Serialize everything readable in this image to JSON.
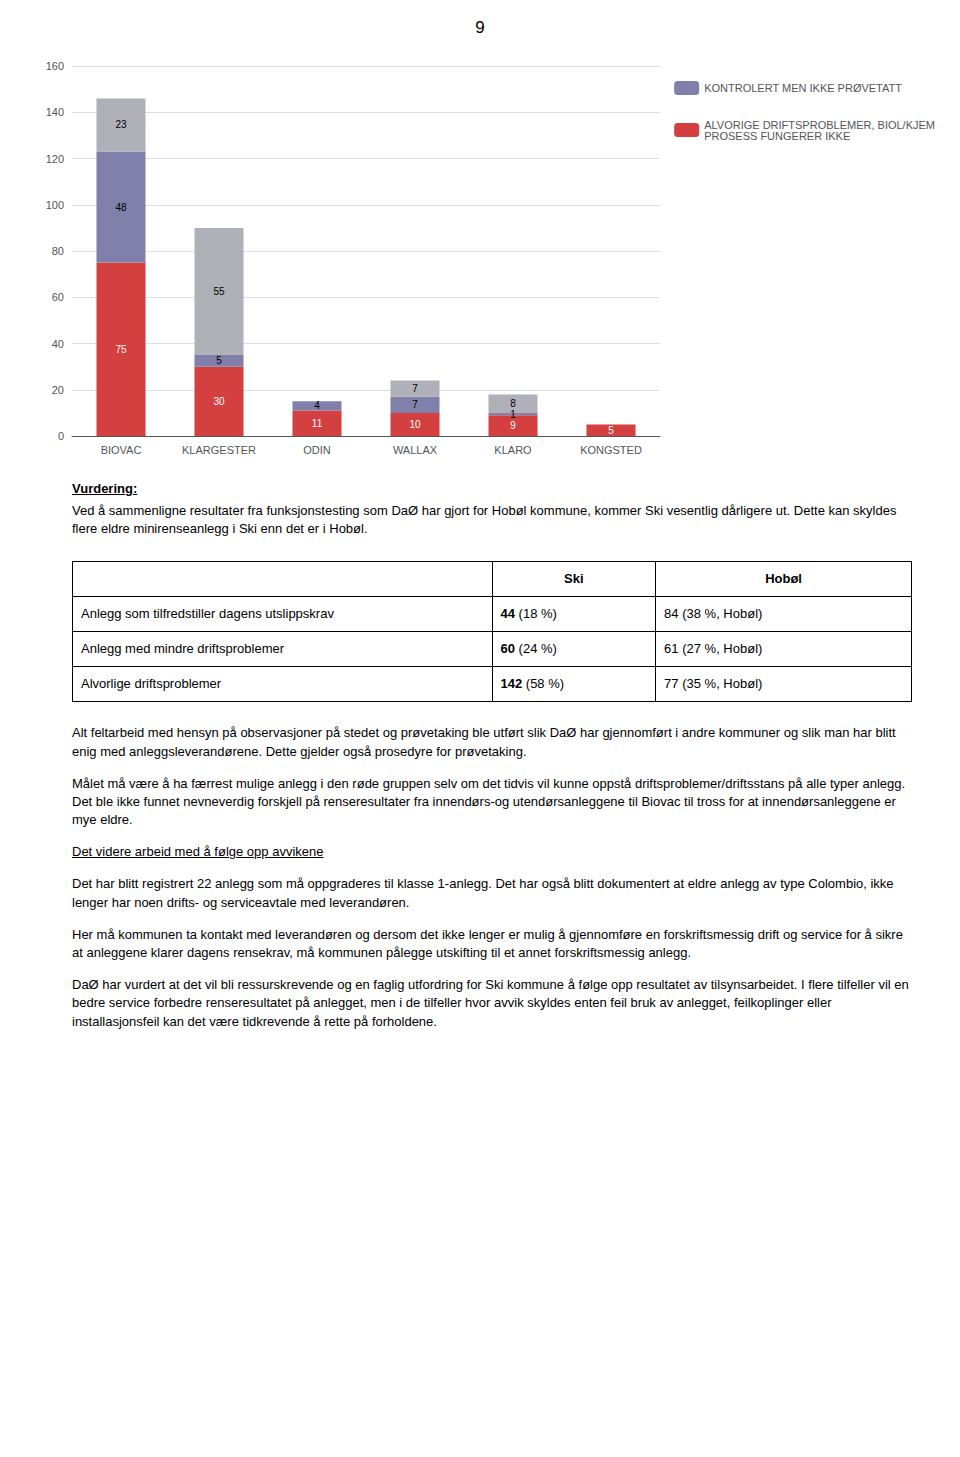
{
  "page_number": "9",
  "chart_data": {
    "type": "bar",
    "stacked": true,
    "categories": [
      "BIOVAC",
      "KLARGESTER",
      "ODIN",
      "WALLAX",
      "KLARO",
      "KONGSTED"
    ],
    "series": [
      {
        "name": "ALVORIGE DRIFTSPROBLEMER, BIOL/KJEM\nPROSESS FUNGERER IKKE",
        "color": "#d43f3f",
        "values": [
          75,
          30,
          11,
          10,
          9,
          5
        ]
      },
      {
        "name": "KONTROLERT MEN IKKE PRØVETATT",
        "color": "#8080aa",
        "values": [
          48,
          5,
          4,
          7,
          1,
          0
        ]
      },
      {
        "color": "#b0b0b8",
        "values": [
          23,
          55,
          0,
          7,
          8,
          0
        ]
      }
    ],
    "ylim": [
      0,
      160
    ],
    "yticks": [
      0,
      20,
      40,
      60,
      80,
      100,
      120,
      140,
      160
    ],
    "grid": true,
    "legend": "right",
    "data_labels": true
  },
  "vurdering_title": "Vurdering:",
  "vurdering_text": "Ved å sammenligne resultater fra funksjonstesting som DaØ har gjort for Hobøl kommune, kommer Ski vesentlig dårligere ut. Dette kan skyldes flere eldre minirenseanlegg i Ski enn det er i Hobøl.",
  "table": {
    "headers": [
      "",
      "Ski",
      "Hobøl"
    ],
    "rows": [
      [
        "Anlegg som tilfredstiller dagens utslippskrav",
        "44 (18 %)",
        "84 (38 %, Hobøl)"
      ],
      [
        "Anlegg med mindre driftsproblemer",
        "60 (24 %)",
        "61 (27 %, Hobøl)"
      ],
      [
        "Alvorlige driftsproblemer",
        "142 (58 %)",
        "77 (35 %, Hobøl)"
      ]
    ]
  },
  "paragraphs": [
    {
      "text": "Alt feltarbeid med hensyn på observasjoner på stedet og prøvetaking ble utført slik DaØ har gjennomført i andre kommuner og slik man har blitt enig med anleggsleverandørene. Dette gjelder også prosedyre for prøvetaking.",
      "underline": false
    },
    {
      "text": "Målet må være å ha færrest mulige anlegg i den røde gruppen selv om det tidvis vil kunne oppstå driftsproblemer/driftsstans på alle typer anlegg. Det ble ikke funnet nevneverdig forskjell på renseresultater fra innendørs-og utendørsanleggene til Biovac til tross for at innendørsanleggene er mye eldre.",
      "underline": false
    },
    {
      "text": "Det videre arbeid med å følge opp avvikene",
      "underline": true
    },
    {
      "text": "Det har blitt registrert 22 anlegg som må oppgraderes til klasse 1-anlegg. Det har også blitt dokumentert at eldre anlegg av type Colombio, ikke lenger har noen drifts- og serviceavtale med leverandøren.",
      "underline": false
    },
    {
      "text": "Her må kommunen ta kontakt med leverandøren og dersom det ikke lenger er mulig å gjennomføre en forskriftsmessig drift og service for å sikre at anleggene klarer dagens rensekrav, må kommunen pålegge utskifting til et annet forskriftsmessig anlegg.",
      "underline": false
    },
    {
      "text": "DaØ har vurdert at det vil bli ressurskrevende og en faglig utfordring for Ski kommune å følge opp resultatet av tilsynsarbeidet. I flere tilfeller vil en bedre service forbedre renseresultatet på anlegget, men i de tilfeller hvor avvik skyldes enten feil bruk av anlegget, feilkoplinger eller installasjonsfeil kan det være tidkrevende å rette på forholdene.",
      "underline": false
    }
  ]
}
